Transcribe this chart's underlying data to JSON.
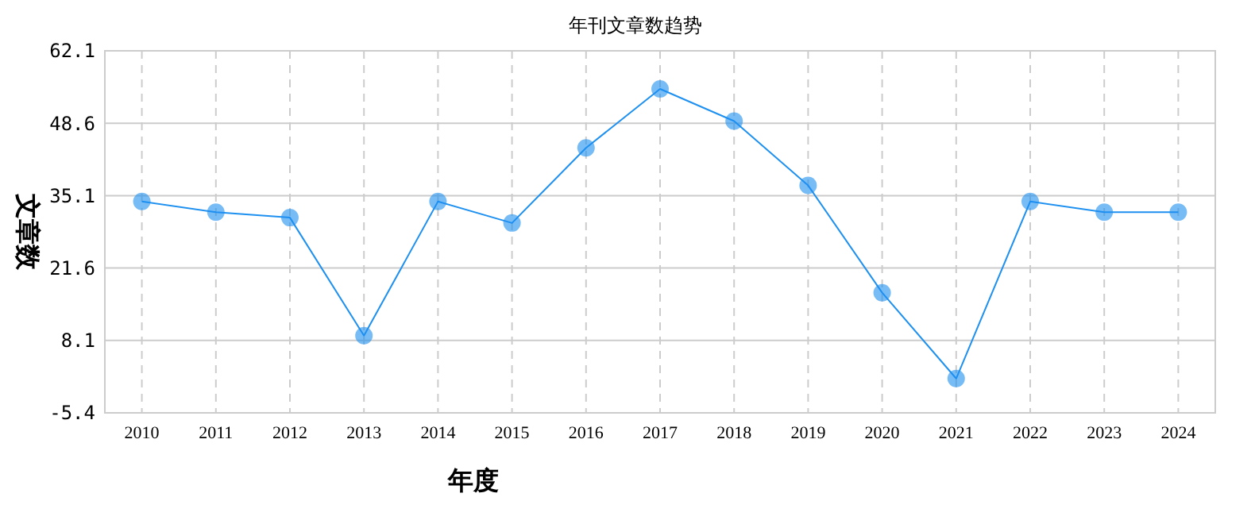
{
  "chart_data": {
    "type": "line",
    "title": "年刊文章数趋势",
    "xlabel": "年度",
    "ylabel": "文章数",
    "categories": [
      "2010",
      "2011",
      "2012",
      "2013",
      "2014",
      "2015",
      "2016",
      "2017",
      "2018",
      "2019",
      "2020",
      "2021",
      "2022",
      "2023",
      "2024"
    ],
    "series": [
      {
        "color": "#1e90f0",
        "values": [
          34,
          32,
          31,
          9,
          34,
          30,
          44,
          55,
          49,
          37,
          17,
          1,
          34,
          32,
          32
        ]
      }
    ],
    "ylim": [
      -5.4,
      62.1
    ],
    "yticks": [
      -5.4,
      8.1,
      21.6,
      35.1,
      48.6,
      62.1
    ],
    "grid": true,
    "marker": "circle",
    "line_style": "solid"
  }
}
